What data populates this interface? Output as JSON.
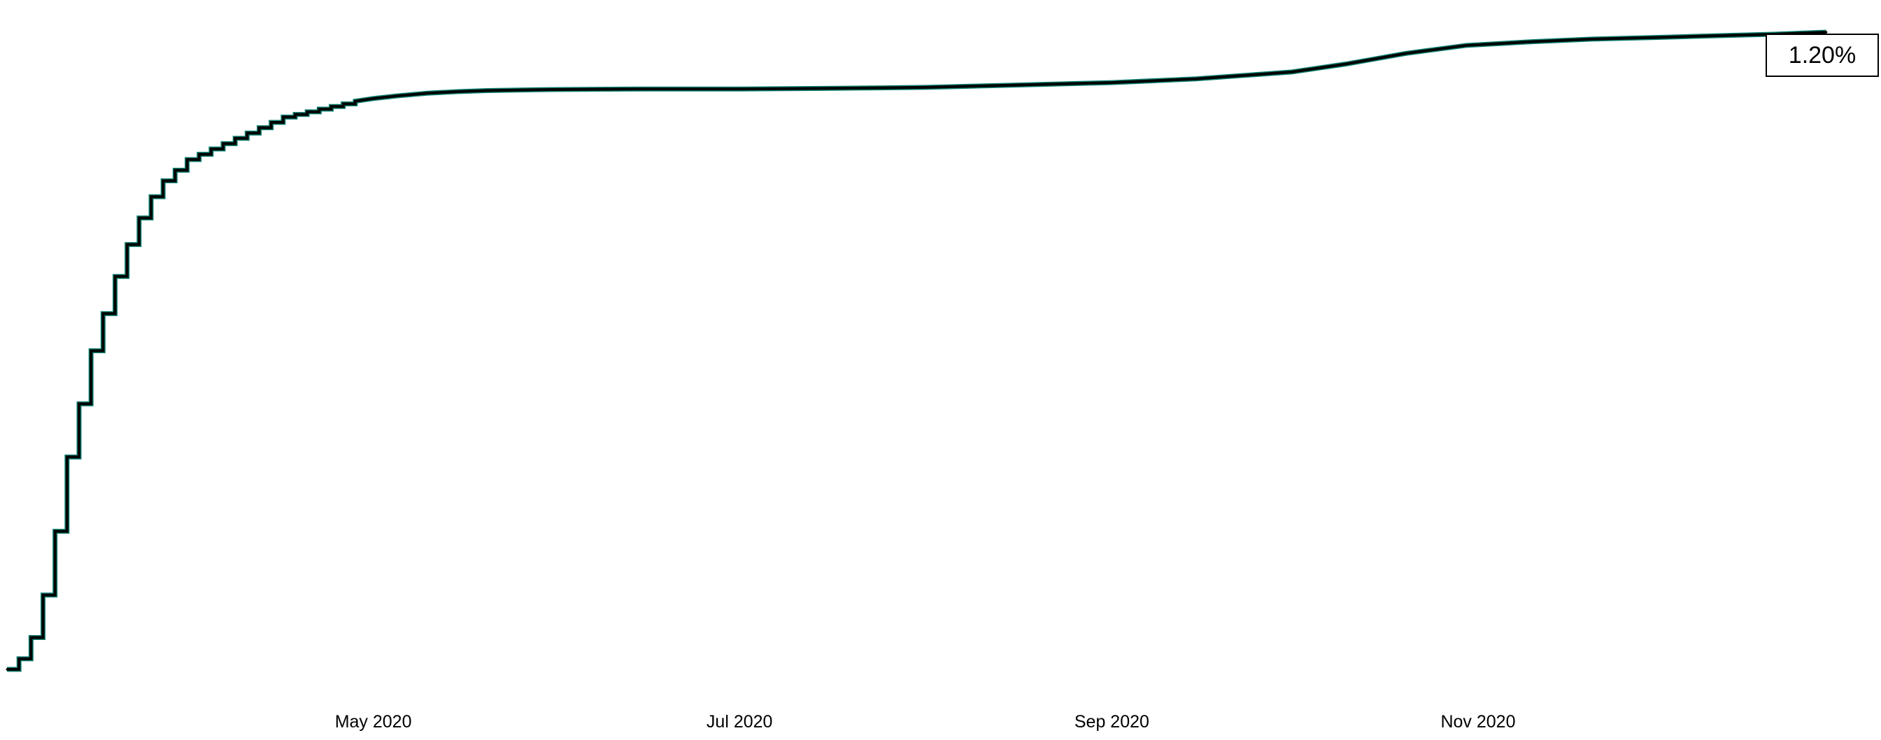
{
  "chart_data": {
    "type": "line",
    "title": "",
    "xlabel": "",
    "ylabel": "",
    "x_axis": {
      "type": "date",
      "range": [
        "2020-03-01",
        "2020-12-31"
      ],
      "ticks": [
        {
          "value": "2020-05-01",
          "label": "May 2020"
        },
        {
          "value": "2020-07-01",
          "label": "Jul 2020"
        },
        {
          "value": "2020-09-01",
          "label": "Sep 2020"
        },
        {
          "value": "2020-11-01",
          "label": "Nov 2020"
        }
      ]
    },
    "y_axis": {
      "visible": false,
      "range": [
        0,
        1.25
      ],
      "unit": "%"
    },
    "grid": false,
    "legend": "none",
    "value_label": "1.20%",
    "colors": {
      "line": "#000000",
      "fill": "#0f7f70"
    },
    "series": [
      {
        "x": [
          "2020-03-01",
          "2020-03-03",
          "2020-03-05",
          "2020-03-07",
          "2020-03-09",
          "2020-03-11",
          "2020-03-13",
          "2020-03-15",
          "2020-03-17",
          "2020-03-19",
          "2020-03-21",
          "2020-03-23",
          "2020-03-25",
          "2020-03-27",
          "2020-03-29",
          "2020-03-31",
          "2020-04-02",
          "2020-04-04",
          "2020-04-06",
          "2020-04-08",
          "2020-04-10",
          "2020-04-12",
          "2020-04-14",
          "2020-04-16",
          "2020-04-18",
          "2020-04-20",
          "2020-04-22",
          "2020-04-24",
          "2020-04-26",
          "2020-04-28",
          "2020-05-01",
          "2020-05-05",
          "2020-05-10",
          "2020-05-15",
          "2020-05-20",
          "2020-05-31",
          "2020-06-15",
          "2020-07-01",
          "2020-07-15",
          "2020-08-01",
          "2020-08-15",
          "2020-09-01",
          "2020-09-15",
          "2020-10-01",
          "2020-10-10",
          "2020-10-20",
          "2020-10-30",
          "2020-11-10",
          "2020-11-20",
          "2020-12-01",
          "2020-12-10",
          "2020-12-20",
          "2020-12-29"
        ],
        "y": [
          0.0,
          0.02,
          0.06,
          0.14,
          0.26,
          0.4,
          0.5,
          0.6,
          0.67,
          0.74,
          0.8,
          0.85,
          0.89,
          0.92,
          0.94,
          0.96,
          0.97,
          0.98,
          0.99,
          1.0,
          1.01,
          1.02,
          1.03,
          1.04,
          1.045,
          1.05,
          1.055,
          1.06,
          1.065,
          1.07,
          1.075,
          1.08,
          1.085,
          1.088,
          1.09,
          1.092,
          1.093,
          1.093,
          1.094,
          1.096,
          1.1,
          1.105,
          1.112,
          1.125,
          1.14,
          1.16,
          1.175,
          1.182,
          1.187,
          1.19,
          1.193,
          1.196,
          1.2
        ]
      }
    ]
  }
}
